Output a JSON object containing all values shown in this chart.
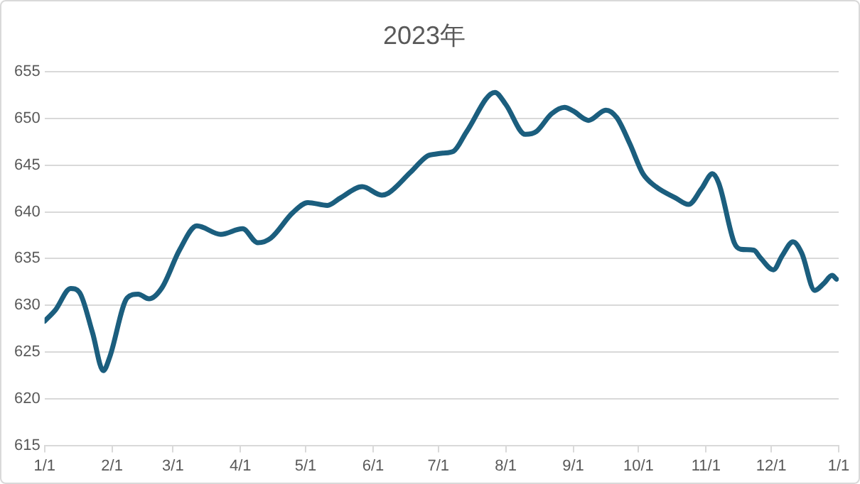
{
  "chart_data": {
    "type": "line",
    "title": "2023年",
    "x": [
      "2023-01-01",
      "2023-01-06",
      "2023-01-13",
      "2023-01-17",
      "2023-01-23",
      "2023-01-28",
      "2023-01-31",
      "2023-02-08",
      "2023-02-13",
      "2023-02-18",
      "2023-02-24",
      "2023-03-04",
      "2023-03-12",
      "2023-03-23",
      "2023-04-02",
      "2023-04-09",
      "2023-04-15",
      "2023-04-25",
      "2023-05-02",
      "2023-05-11",
      "2023-05-17",
      "2023-05-27",
      "2023-06-05",
      "2023-06-08",
      "2023-06-18",
      "2023-06-26",
      "2023-06-30",
      "2023-07-03",
      "2023-07-08",
      "2023-07-14",
      "2023-07-27",
      "2023-08-01",
      "2023-08-10",
      "2023-08-15",
      "2023-08-22",
      "2023-08-28",
      "2023-09-01",
      "2023-09-08",
      "2023-09-16",
      "2023-09-21",
      "2023-09-27",
      "2023-10-03",
      "2023-10-09",
      "2023-10-18",
      "2023-10-24",
      "2023-10-30",
      "2023-11-04",
      "2023-11-07",
      "2023-11-14",
      "2023-11-17",
      "2023-11-23",
      "2023-11-26",
      "2023-12-02",
      "2023-12-06",
      "2023-12-11",
      "2023-12-15",
      "2023-12-21",
      "2023-12-25",
      "2023-12-29",
      "2023-12-31"
    ],
    "series": [
      {
        "color": "#1b5e7e",
        "values": [
          628.3,
          629.5,
          631.8,
          631.4,
          627.1,
          623.0,
          624.5,
          630.8,
          631.2,
          630.7,
          631.9,
          635.9,
          638.5,
          637.6,
          638.2,
          636.7,
          637.2,
          639.9,
          641.0,
          640.7,
          641.5,
          642.7,
          641.8,
          642.0,
          644.2,
          646.0,
          646.2,
          646.3,
          646.5,
          648.6,
          652.8,
          651.5,
          648.3,
          648.6,
          650.5,
          651.2,
          650.8,
          649.8,
          650.9,
          650.1,
          647.3,
          644.1,
          642.7,
          641.5,
          640.8,
          642.5,
          644.1,
          643.0,
          636.7,
          636.0,
          635.9,
          635.1,
          633.8,
          635.3,
          636.8,
          635.6,
          631.6,
          632.3,
          633.2,
          632.8
        ]
      }
    ],
    "xlim": [
      "2023-01-01",
      "2024-01-01"
    ],
    "xticks": [
      {
        "value": "2023-01-01",
        "label": "1/1"
      },
      {
        "value": "2023-02-01",
        "label": "2/1"
      },
      {
        "value": "2023-03-01",
        "label": "3/1"
      },
      {
        "value": "2023-04-01",
        "label": "4/1"
      },
      {
        "value": "2023-05-01",
        "label": "5/1"
      },
      {
        "value": "2023-06-01",
        "label": "6/1"
      },
      {
        "value": "2023-07-01",
        "label": "7/1"
      },
      {
        "value": "2023-08-01",
        "label": "8/1"
      },
      {
        "value": "2023-09-01",
        "label": "9/1"
      },
      {
        "value": "2023-10-01",
        "label": "10/1"
      },
      {
        "value": "2023-11-01",
        "label": "11/1"
      },
      {
        "value": "2023-12-01",
        "label": "12/1"
      },
      {
        "value": "2024-01-01",
        "label": "1/1"
      }
    ],
    "ylim": [
      615,
      655
    ],
    "yticks": [
      615,
      620,
      625,
      630,
      635,
      640,
      645,
      650,
      655
    ],
    "grid": "y",
    "legend": false,
    "marker": "none",
    "line_style": "solid"
  }
}
